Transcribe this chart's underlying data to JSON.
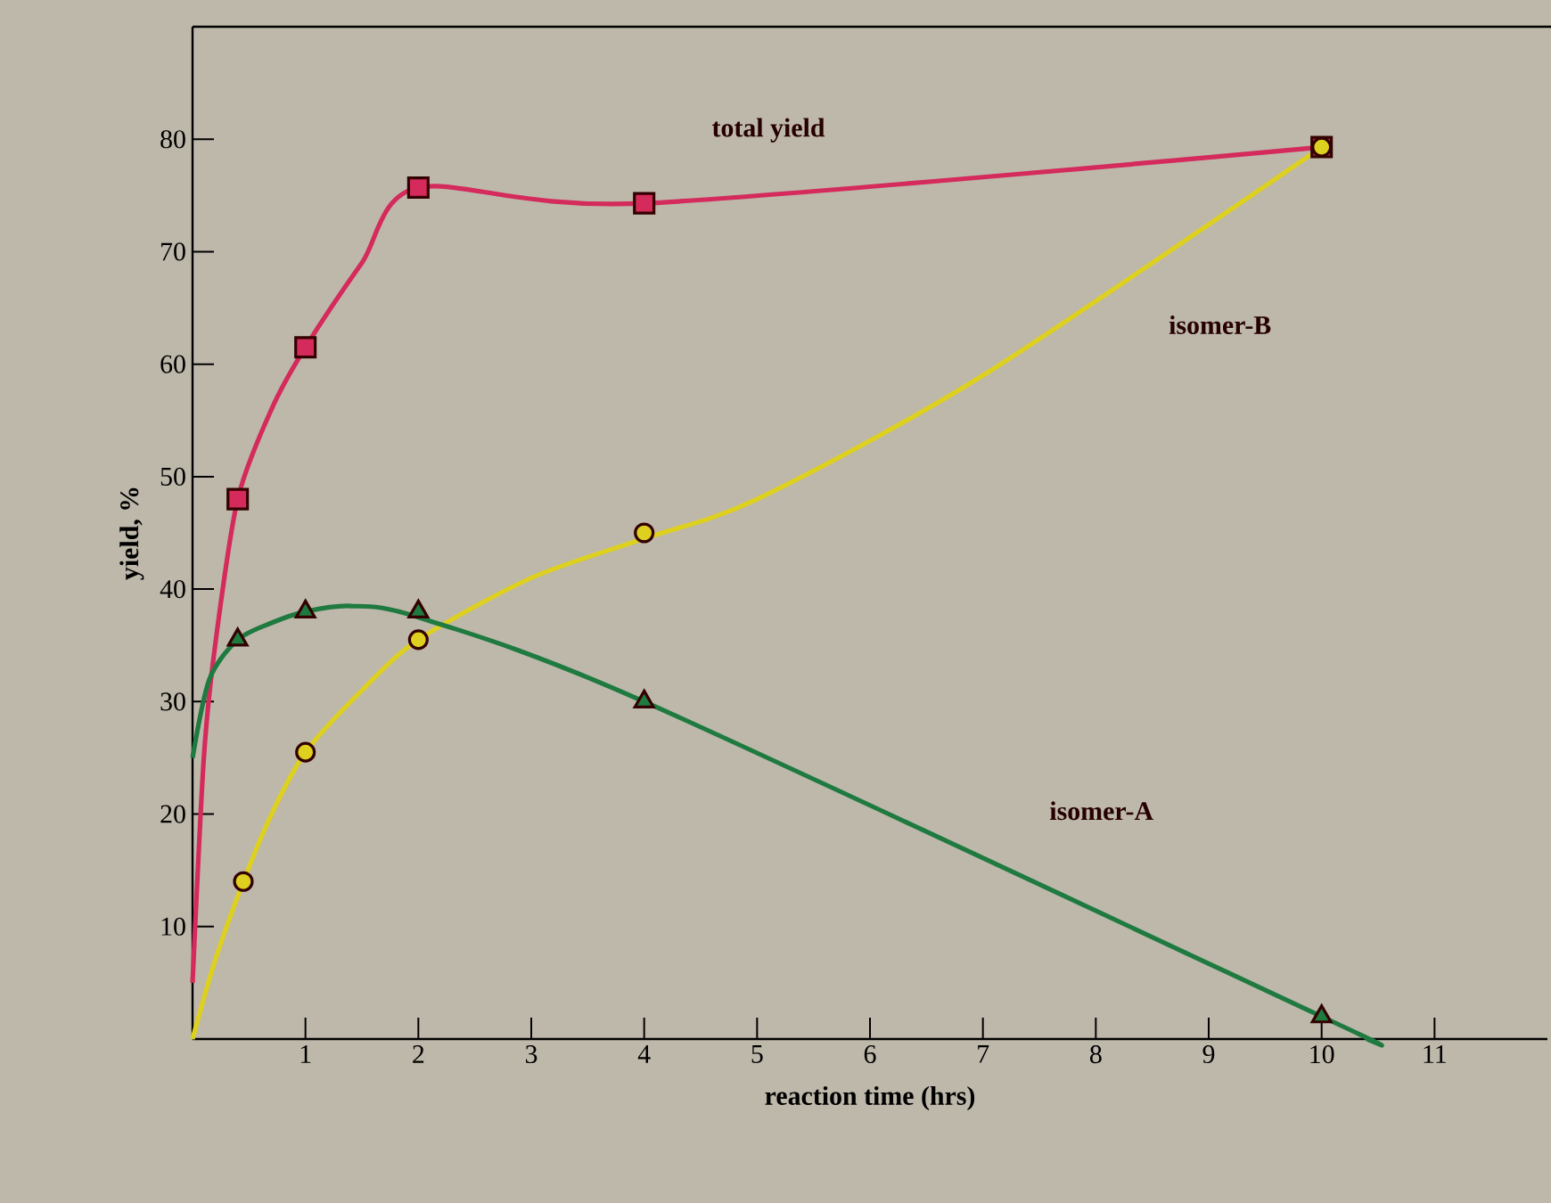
{
  "chart_data": {
    "type": "line",
    "xlabel": "reaction time (hrs)",
    "ylabel": "yield, %",
    "xlim": [
      0,
      12
    ],
    "ylim": [
      0,
      90
    ],
    "xticks": [
      1,
      2,
      3,
      4,
      5,
      6,
      7,
      8,
      9,
      10,
      11
    ],
    "yticks": [
      10,
      20,
      30,
      40,
      50,
      60,
      70,
      80
    ],
    "series": [
      {
        "name": "total yield",
        "color": "#d42a5c",
        "x": [
          0,
          0.1,
          0.2,
          0.4,
          0.7,
          1,
          1.5,
          2,
          4,
          10
        ],
        "values": [
          5,
          25,
          35,
          48,
          56,
          61.5,
          69,
          75.7,
          74.3,
          79.3
        ]
      },
      {
        "name": "isomer-B",
        "color": "#ddd01e",
        "x": [
          0,
          0.2,
          0.45,
          0.7,
          1,
          1.5,
          2,
          3,
          4,
          5,
          7,
          10
        ],
        "values": [
          0,
          7,
          14,
          20,
          25.5,
          31,
          35.5,
          41,
          44.5,
          48,
          59,
          79.3
        ]
      },
      {
        "name": "isomer-A",
        "color": "#1f7a40",
        "x": [
          0,
          0.15,
          0.4,
          0.7,
          1,
          1.4,
          2,
          4,
          10,
          10.4
        ],
        "values": [
          25,
          32,
          35.5,
          37,
          38,
          38.5,
          37.5,
          30,
          2,
          0
        ]
      },
      {
        "type": "scatter",
        "marker": "square",
        "color": "#d42a5c",
        "x": [
          0.4,
          1,
          2,
          4,
          10
        ],
        "values": [
          48,
          61.5,
          75.7,
          74.3,
          79.3
        ]
      },
      {
        "type": "scatter",
        "marker": "circle",
        "color": "#ddd01e",
        "x": [
          0.45,
          1,
          2,
          4,
          10
        ],
        "values": [
          14,
          25.5,
          35.5,
          45,
          79.3
        ]
      },
      {
        "type": "scatter",
        "marker": "triangle",
        "color": "#1f7a40",
        "x": [
          0.4,
          1,
          2,
          4,
          10
        ],
        "values": [
          35.5,
          38,
          38,
          30,
          2
        ]
      }
    ]
  }
}
